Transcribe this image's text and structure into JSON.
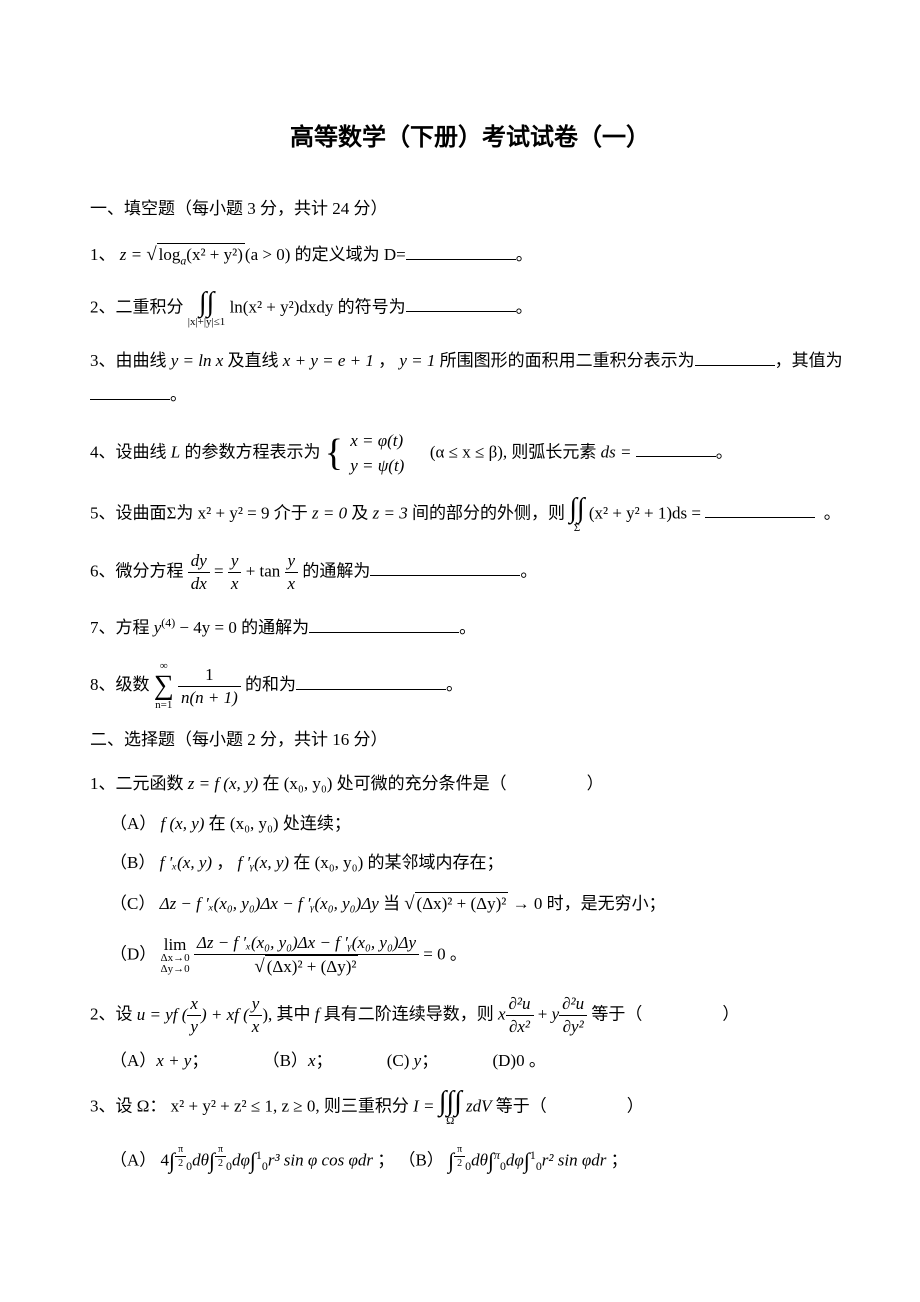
{
  "colors": {
    "background": "#ffffff",
    "text": "#000000",
    "rule": "#000000"
  },
  "typography": {
    "body_font": "SimSun",
    "math_font": "Times New Roman",
    "title_fontsize": 24,
    "body_fontsize": 17
  },
  "title": "高等数学（下册）考试试卷（一）",
  "section1": {
    "heading": "一、填空题（每小题 3 分，共计 24 分）",
    "q1": {
      "prefix": "1、  ",
      "expr_lhs": "z = ",
      "expr_inside": "log",
      "expr_sub": "a",
      "expr_arg": "(x² + y²)",
      "expr_cond": "(a > 0)",
      "mid": " 的定义域为 D=",
      "suffix": "。"
    },
    "q2": {
      "prefix": "2、二重积分 ",
      "int_sub": "|x|+|y|≤1",
      "integrand": "ln(x² + y²)dxdy",
      "mid": " 的符号为",
      "suffix": "。"
    },
    "q3": {
      "prefix": "3、由曲线 ",
      "e1": "y = ln x",
      "mid1": " 及直线 ",
      "e2": "x + y = e + 1",
      "comma": "，",
      "e3": "y = 1",
      "mid2": "所围图形的面积用二重积分表示为",
      "mid3": "，其值为",
      "suffix": "。"
    },
    "q4": {
      "prefix": "4、设曲线 ",
      "L": "L",
      "mid1": " 的参数方程表示为",
      "r1": "x = φ(t)",
      "r2": "y = ψ(t)",
      "cond": "(α ≤ x ≤ β),",
      "mid2": " 则弧长元素 ",
      "ds": "ds = ",
      "suffix": "。"
    },
    "q5": {
      "prefix": "5、设曲面Σ为 ",
      "e1": "x² + y² = 9",
      "mid1": " 介于 ",
      "e2": "z = 0",
      "mid2": " 及 ",
      "e3": "z = 3",
      "mid3": " 间的部分的外侧，则",
      "int_sub": "Σ",
      "integrand": "(x² + y² + 1)ds = ",
      "suffix": "。"
    },
    "q6": {
      "prefix": "6、微分方程 ",
      "lhs_num": "dy",
      "lhs_den": "dx",
      "eq": " = ",
      "r1_num": "y",
      "r1_den": "x",
      "plus": " + tan ",
      "r2_num": "y",
      "r2_den": "x",
      "mid": " 的通解为",
      "suffix": "。"
    },
    "q7": {
      "prefix": "7、方程 ",
      "expr": "y",
      "sup": "(4)",
      "rest": " − 4y = 0",
      "mid": " 的通解为",
      "suffix": "。"
    },
    "q8": {
      "prefix": "8、级数 ",
      "sum_top": "∞",
      "sum_bot": "n=1",
      "num": "1",
      "den": "n(n + 1)",
      "mid": " 的和为",
      "suffix": "。"
    }
  },
  "section2": {
    "heading": "二、选择题（每小题 2 分，共计 16 分）",
    "q1": {
      "prefix": "1、二元函数 ",
      "e1": "z = f (x, y)",
      "mid1": " 在 ",
      "e2": "(x₀, y₀)",
      "mid2": " 处可微的充分条件是（",
      "suffix": "）",
      "optA_label": "（A）",
      "optA_e1": "f (x, y)",
      "optA_mid": " 在 ",
      "optA_e2": "(x₀, y₀)",
      "optA_end": " 处连续；",
      "optB_label": "（B）",
      "optB_e1": "f ′ₓ(x, y)",
      "optB_comma": "，",
      "optB_e2": "f ′ᵧ(x, y)",
      "optB_mid": " 在 ",
      "optB_e3": "(x₀, y₀)",
      "optB_end": " 的某邻域内存在；",
      "optC_label": "（C）  ",
      "optC_e1": "Δz − f ′ₓ(x₀, y₀)Δx − f ′ᵧ(x₀, y₀)Δy",
      "optC_mid": " 当 ",
      "optC_sq": "(Δx)² + (Δy)²",
      "optC_end": " → 0 时，是无穷小；",
      "optD_label": "（D）",
      "optD_lim": "lim",
      "optD_sub1": "Δx→0",
      "optD_sub2": "Δy→0",
      "optD_num": "Δz − f ′ₓ(x₀, y₀)Δx − f ′ᵧ(x₀, y₀)Δy",
      "optD_den_sq": "(Δx)² + (Δy)²",
      "optD_end": " = 0 。"
    },
    "q2": {
      "prefix": "2、设 ",
      "e1a": "u = yf (",
      "f1n": "x",
      "f1d": "y",
      "e1b": ") + xf (",
      "f2n": "y",
      "f2d": "x",
      "e1c": "),",
      "mid1": " 其中 ",
      "f": "f",
      "mid2": " 具有二阶连续导数，则",
      "p1a": "x",
      "p1_num": "∂²u",
      "p1_den": "∂x²",
      "plus": " + ",
      "p2a": "y",
      "p2_num": "∂²u",
      "p2_den": "∂y²",
      "mid3": " 等于（",
      "suffix": "）",
      "optA": "（A）",
      "optA_e": "x + y",
      "optA_s": "；",
      "optB": "（B）",
      "optB_e": "x",
      "optB_s": "；",
      "optC": "(C) ",
      "optC_e": "y",
      "optC_s": "；",
      "optD": "(D)",
      "optD_e": "0",
      "optD_s": " 。"
    },
    "q3": {
      "prefix": "3、设 Ω：",
      "e1": "x² + y² + z² ≤ 1, z ≥ 0,",
      "mid1": " 则三重积分 ",
      "I": "I = ",
      "int_sub": "Ω",
      "integrand": "zdV",
      "mid2": " 等于（",
      "suffix": "）",
      "optA_label": "（A）",
      "optA_4": "4",
      "optA_i1_top": "π/2",
      "optA_i1_bot": "0",
      "optA_i1_d": "dθ",
      "optA_i2_top": "π/2",
      "optA_i2_bot": "0",
      "optA_i2_d": "dφ",
      "optA_i3_top": "1",
      "optA_i3_bot": "0",
      "optA_i3_int": "r³ sin φ cos φdr",
      "optA_end": "；",
      "optB_label": "（B）",
      "optB_i1_top": "π/2",
      "optB_i1_bot": "0",
      "optB_i1_d": "dθ",
      "optB_i2_top": "π",
      "optB_i2_bot": "0",
      "optB_i2_d": "dφ",
      "optB_i3_top": "1",
      "optB_i3_bot": "0",
      "optB_i3_int": "r² sin φdr",
      "optB_end": "；"
    }
  }
}
